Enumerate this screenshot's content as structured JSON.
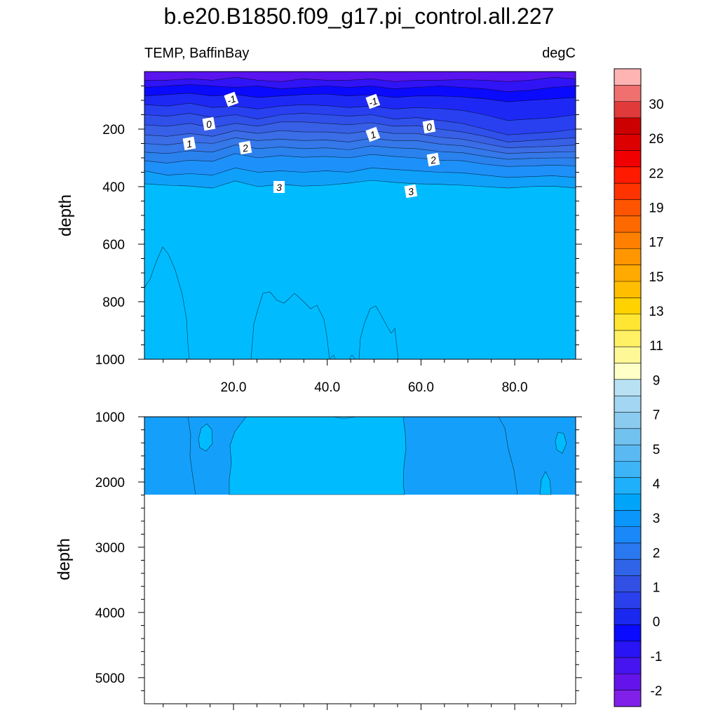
{
  "title": "b.e20.B1850.f09_g17.pi_control.all.227",
  "left_subtitle": "TEMP, BaffinBay",
  "right_subtitle": "degC",
  "chart_data": [
    {
      "type": "contour",
      "panel": "upper",
      "ylabel": "depth",
      "xlim": [
        1,
        93
      ],
      "ylim": [
        0,
        1000
      ],
      "y_inverted": true,
      "yticks": [
        "200",
        "400",
        "600",
        "800",
        "1000"
      ],
      "xticks": [
        "20.0",
        "40.0",
        "60.0",
        "80.0"
      ],
      "contour_labels": [
        "-1",
        "-1",
        "0",
        "0",
        "1",
        "1",
        "2",
        "2",
        "3",
        "3"
      ],
      "bands": [
        {
          "level": -2.0,
          "color": "#5a14f0",
          "depths": [
            30,
            30,
            25,
            30,
            20,
            30,
            35,
            25,
            30,
            30,
            25,
            35,
            30,
            30,
            28,
            30,
            35,
            30,
            20,
            25
          ]
        },
        {
          "level": -1.5,
          "color": "#3014f5",
          "depths": [
            55,
            50,
            45,
            50,
            55,
            50,
            60,
            55,
            50,
            55,
            50,
            60,
            55,
            50,
            55,
            60,
            70,
            65,
            55,
            50
          ]
        },
        {
          "level": -1.0,
          "color": "#0a0aff",
          "depths": [
            85,
            80,
            75,
            85,
            80,
            90,
            85,
            80,
            78,
            85,
            80,
            90,
            85,
            85,
            88,
            95,
            105,
            100,
            95,
            90
          ]
        },
        {
          "level": -0.5,
          "color": "#1e28f5",
          "depths": [
            115,
            120,
            110,
            125,
            120,
            130,
            120,
            115,
            118,
            125,
            120,
            130,
            125,
            128,
            135,
            150,
            170,
            165,
            160,
            150
          ]
        },
        {
          "level": 0.0,
          "color": "#2840f0",
          "depths": [
            150,
            155,
            145,
            160,
            150,
            165,
            150,
            145,
            150,
            155,
            150,
            165,
            160,
            170,
            180,
            200,
            220,
            215,
            210,
            200
          ]
        },
        {
          "level": 0.5,
          "color": "#3050ea",
          "depths": [
            185,
            190,
            180,
            195,
            180,
            190,
            175,
            175,
            180,
            185,
            178,
            190,
            188,
            200,
            210,
            225,
            245,
            240,
            235,
            230
          ]
        },
        {
          "level": 1.0,
          "color": "#3860e6",
          "depths": [
            220,
            225,
            215,
            225,
            205,
            215,
            205,
            210,
            210,
            215,
            205,
            215,
            215,
            228,
            235,
            250,
            265,
            262,
            260,
            255
          ]
        },
        {
          "level": 1.5,
          "color": "#3a6de6",
          "depths": [
            250,
            255,
            245,
            250,
            230,
            240,
            235,
            240,
            238,
            245,
            232,
            240,
            240,
            252,
            258,
            272,
            285,
            282,
            280,
            278
          ]
        },
        {
          "level": 2.0,
          "color": "#3478ea",
          "depths": [
            280,
            285,
            275,
            280,
            255,
            268,
            262,
            268,
            265,
            272,
            258,
            265,
            268,
            278,
            282,
            295,
            305,
            302,
            300,
            300
          ]
        },
        {
          "level": 2.5,
          "color": "#2a82ee",
          "depths": [
            310,
            318,
            308,
            312,
            285,
            300,
            292,
            298,
            295,
            300,
            288,
            295,
            300,
            308,
            310,
            322,
            330,
            328,
            325,
            328
          ]
        },
        {
          "level": 3.0,
          "color": "#1e90fa",
          "depths": [
            345,
            360,
            355,
            360,
            335,
            350,
            345,
            350,
            345,
            350,
            335,
            340,
            345,
            350,
            352,
            360,
            368,
            365,
            362,
            368
          ]
        },
        {
          "level": 3.5,
          "color": "#0fa0fa",
          "depths": [
            390,
            395,
            398,
            405,
            380,
            400,
            392,
            398,
            395,
            388,
            378,
            385,
            390,
            392,
            395,
            400,
            405,
            400,
            398,
            405
          ]
        },
        {
          "level": 4.0,
          "color": "#00bcff",
          "depths": []
        }
      ]
    },
    {
      "type": "contour",
      "panel": "lower",
      "ylabel": "depth",
      "ylim": [
        1000,
        5400
      ],
      "y_inverted": true,
      "data_bottom": 2200,
      "yticks": [
        "1000",
        "2000",
        "3000",
        "4000",
        "5000"
      ],
      "bands": [
        {
          "level": 3.5,
          "color": "#14a0fa"
        },
        {
          "level": 4.0,
          "color": "#00bcff"
        }
      ]
    }
  ],
  "colorbar": {
    "colors": [
      "#ffb4b4",
      "#f07070",
      "#e03a3a",
      "#cc0000",
      "#dd0000",
      "#f00000",
      "#ff1a00",
      "#ff3300",
      "#ff5500",
      "#ff6a00",
      "#ff8000",
      "#ff9600",
      "#ffaa00",
      "#ffbe00",
      "#ffd200",
      "#ffe632",
      "#fff064",
      "#fff896",
      "#ffffc8",
      "#b8e2f4",
      "#a2d6f2",
      "#8ccbf0",
      "#72c2f0",
      "#5ab9f2",
      "#3cb4f5",
      "#1eb0fa",
      "#00a5fa",
      "#0a96fa",
      "#1a88f8",
      "#2a78f0",
      "#3064e8",
      "#3250e4",
      "#2a40ec",
      "#1a28f0",
      "#0a0aff",
      "#2814f5",
      "#4614ee",
      "#6414ea",
      "#8020e8"
    ],
    "labels": [
      "30",
      "26",
      "22",
      "19",
      "17",
      "15",
      "13",
      "11",
      "9",
      "7",
      "5",
      "4",
      "3",
      "2",
      "1",
      "0",
      "-1",
      "-2"
    ]
  }
}
